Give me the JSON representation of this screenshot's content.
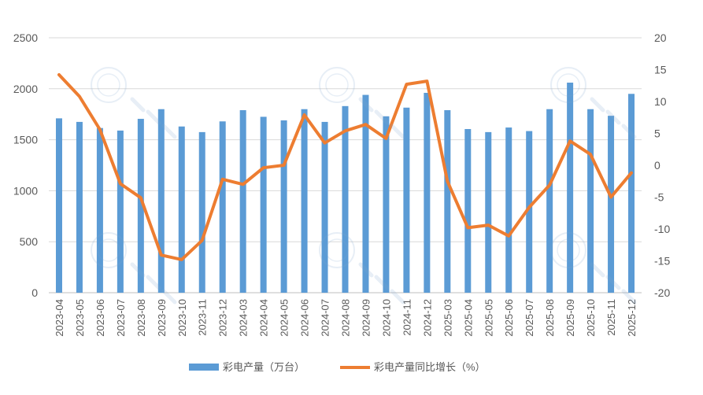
{
  "chart_data": {
    "type": "bar",
    "categories": [
      "2023-04",
      "2023-05",
      "2023-06",
      "2023-07",
      "2023-08",
      "2023-09",
      "2023-10",
      "2023-11",
      "2023-12",
      "2024-03",
      "2024-04",
      "2024-05",
      "2024-06",
      "2024-07",
      "2024-08",
      "2024-09",
      "2024-10",
      "2024-11",
      "2024-12",
      "2025-03",
      "2025-04",
      "2025-05",
      "2025-06",
      "2025-07",
      "2025-08",
      "2025-09",
      "2025-10",
      "2025-11",
      "2025-12"
    ],
    "series": [
      {
        "name": "彩电产量（万台）",
        "type": "bar",
        "axis": "left",
        "color": "#5b9bd5",
        "values": [
          1710,
          1675,
          1615,
          1590,
          1705,
          1800,
          1630,
          1575,
          1680,
          1790,
          1725,
          1690,
          1800,
          1675,
          1830,
          1940,
          1730,
          1815,
          1960,
          1790,
          1605,
          1575,
          1620,
          1585,
          1800,
          2060,
          1800,
          1735,
          1950
        ]
      },
      {
        "name": "彩电产量同比增长（%）",
        "type": "line",
        "axis": "right",
        "color": "#ed7d31",
        "values": [
          14.2,
          10.8,
          5.6,
          -2.9,
          -5.1,
          -14.1,
          -14.8,
          -11.8,
          -2.2,
          -3.0,
          -0.4,
          0.0,
          7.9,
          3.5,
          5.4,
          6.4,
          4.2,
          12.7,
          13.2,
          -2.5,
          -9.8,
          -9.4,
          -11.1,
          -6.6,
          -3.1,
          3.8,
          1.7,
          -5.0,
          -1.2
        ]
      }
    ],
    "ylim_left": [
      0,
      2500
    ],
    "yticks_left": [
      "0",
      "500",
      "1000",
      "1500",
      "2000",
      "2500"
    ],
    "ylim_right": [
      -20,
      20
    ],
    "yticks_right": [
      "-20",
      "-15",
      "-10",
      "-5",
      "0",
      "5",
      "10",
      "15",
      "20"
    ],
    "grid": true,
    "legend_position": "bottom-center",
    "title": "",
    "xlabel": "",
    "ylabel": "",
    "y2label": ""
  }
}
